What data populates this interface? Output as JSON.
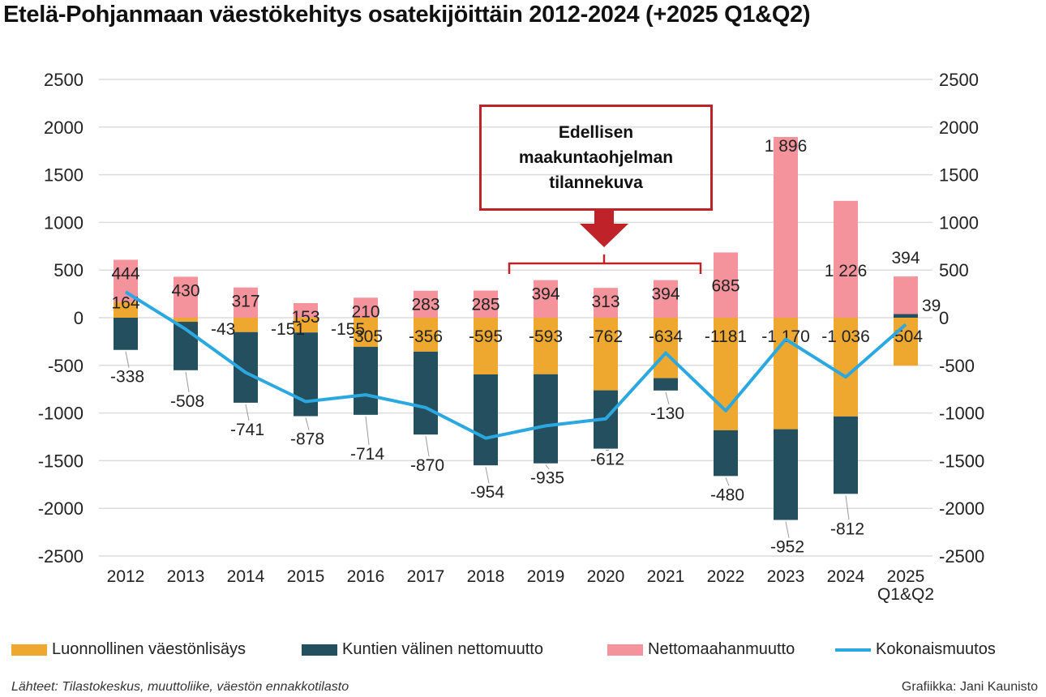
{
  "chart_data": {
    "type": "bar",
    "stacked": true,
    "title": "Etelä-Pohjanmaan väestökehitys osatekijöittäin 2012-2024 (+2025 Q1&Q2)",
    "categories": [
      "2012",
      "2013",
      "2014",
      "2015",
      "2016",
      "2017",
      "2018",
      "2019",
      "2020",
      "2021",
      "2022",
      "2023",
      "2024",
      "2025 Q1&Q2"
    ],
    "series": [
      {
        "name": "Luonnollinen väestönlisäys",
        "type": "bar",
        "color": "#eea82f",
        "values": [
          164,
          -43,
          -151,
          -155,
          -305,
          -356,
          -595,
          -593,
          -762,
          -634,
          -1181,
          -1170,
          -1036,
          -504
        ],
        "labels": [
          "164",
          "-43",
          "-151",
          "-155",
          "-305",
          "-356",
          "-595",
          "-593",
          "-762",
          "-634",
          "-1181",
          "-1 170",
          "-1 036",
          "-504"
        ]
      },
      {
        "name": "Kuntien välinen nettomuutto",
        "type": "bar",
        "color": "#244f5e",
        "values": [
          -338,
          -508,
          -741,
          -878,
          -714,
          -870,
          -954,
          -935,
          -612,
          -130,
          -480,
          -952,
          -812,
          39
        ],
        "labels": [
          "-338",
          "-508",
          "-741",
          "-878",
          "-714",
          "-870",
          "-954",
          "-935",
          "-612",
          "-130",
          "-480",
          "-952",
          "-812",
          "39"
        ]
      },
      {
        "name": "Nettomaahanmuutto",
        "type": "bar",
        "color": "#f4939c",
        "values": [
          444,
          430,
          317,
          153,
          210,
          283,
          285,
          394,
          313,
          394,
          685,
          1896,
          1226,
          394
        ],
        "labels": [
          "444",
          "430",
          "317",
          "153",
          "210",
          "283",
          "285",
          "394",
          "313",
          "394",
          "685",
          "1 896",
          "1 226",
          "394"
        ]
      },
      {
        "name": "Kokonaismuutos",
        "type": "line",
        "color": "#2ba8e0",
        "values": [
          270,
          -121,
          -575,
          -880,
          -809,
          -943,
          -1264,
          -1134,
          -1061,
          -370,
          -976,
          -226,
          -622,
          -71
        ]
      }
    ],
    "ylim": [
      -2500,
      2500
    ],
    "yticks": [
      "2500",
      "2000",
      "1500",
      "1000",
      "500",
      "0",
      "-500",
      "-1000",
      "-1500",
      "-2000",
      "-2500"
    ],
    "grid": true,
    "secondary_axis": true,
    "legend": "bottom",
    "annotation": {
      "text": "Edellisen maakuntaohjelman tilannekuva",
      "covers": [
        "2019",
        "2020",
        "2021"
      ],
      "color": "#c0222a"
    }
  },
  "footer": {
    "source": "Lähteet: Tilastokeskus, muuttoliike,  väestön ennakkotilasto",
    "credit": "Grafiikka: Jani Kaunisto"
  }
}
